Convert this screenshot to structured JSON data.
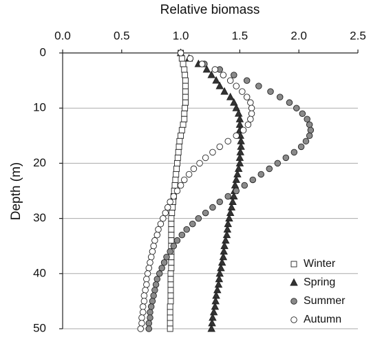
{
  "chart_data": {
    "type": "scatter",
    "xlabel": "Relative biomass",
    "ylabel": "Depth (m)",
    "xlim": [
      0,
      2.5
    ],
    "xticks": [
      {
        "value": 0,
        "label": "0.0"
      },
      0.5,
      {
        "value": 1,
        "label": "1.0"
      },
      1.5,
      {
        "value": 2,
        "label": "2.0"
      },
      2.5
    ],
    "ylim": [
      0,
      50
    ],
    "yticks": [
      0,
      10,
      20,
      30,
      40,
      50
    ],
    "y_inverted": true,
    "grid": true,
    "legend": "bottom-right",
    "y": [
      0,
      1,
      2,
      3,
      4,
      5,
      6,
      7,
      8,
      9,
      10,
      11,
      12,
      13,
      14,
      15,
      16,
      17,
      18,
      19,
      20,
      21,
      22,
      23,
      24,
      25,
      26,
      27,
      28,
      29,
      30,
      31,
      32,
      33,
      34,
      35,
      36,
      37,
      38,
      39,
      40,
      41,
      42,
      43,
      44,
      45,
      46,
      47,
      48,
      49,
      50
    ],
    "series": [
      {
        "name": "Winter",
        "marker": "square",
        "color": "#ffffff",
        "x": [
          1.0,
          1.01,
          1.02,
          1.03,
          1.035,
          1.04,
          1.04,
          1.04,
          1.04,
          1.04,
          1.035,
          1.03,
          1.03,
          1.02,
          1.01,
          1.0,
          0.99,
          0.985,
          0.98,
          0.975,
          0.97,
          0.965,
          0.96,
          0.955,
          0.95,
          0.945,
          0.94,
          0.935,
          0.93,
          0.925,
          0.92,
          0.92,
          0.92,
          0.92,
          0.92,
          0.92,
          0.92,
          0.92,
          0.92,
          0.92,
          0.915,
          0.915,
          0.915,
          0.915,
          0.915,
          0.915,
          0.91,
          0.91,
          0.91,
          0.91,
          0.91
        ]
      },
      {
        "name": "Spring",
        "marker": "triangle",
        "color": "#333333",
        "x": [
          1.0,
          1.07,
          1.15,
          1.22,
          1.26,
          1.3,
          1.33,
          1.37,
          1.42,
          1.45,
          1.47,
          1.49,
          1.5,
          1.5,
          1.5,
          1.505,
          1.51,
          1.51,
          1.505,
          1.5,
          1.5,
          1.49,
          1.48,
          1.47,
          1.46,
          1.455,
          1.45,
          1.44,
          1.43,
          1.42,
          1.41,
          1.4,
          1.395,
          1.39,
          1.38,
          1.37,
          1.365,
          1.36,
          1.35,
          1.34,
          1.33,
          1.325,
          1.32,
          1.31,
          1.3,
          1.295,
          1.29,
          1.28,
          1.27,
          1.265,
          1.26
        ]
      },
      {
        "name": "Summer",
        "marker": "circle",
        "color": "#8a8a8a",
        "x": [
          1.0,
          1.08,
          1.2,
          1.33,
          1.45,
          1.56,
          1.66,
          1.76,
          1.84,
          1.92,
          1.98,
          2.03,
          2.07,
          2.09,
          2.1,
          2.09,
          2.06,
          2.02,
          1.96,
          1.89,
          1.82,
          1.75,
          1.68,
          1.61,
          1.54,
          1.47,
          1.4,
          1.33,
          1.27,
          1.21,
          1.15,
          1.1,
          1.05,
          1.01,
          0.97,
          0.94,
          0.91,
          0.88,
          0.86,
          0.84,
          0.82,
          0.8,
          0.79,
          0.78,
          0.77,
          0.76,
          0.75,
          0.74,
          0.74,
          0.73,
          0.73
        ]
      },
      {
        "name": "Autumn",
        "marker": "circle",
        "color": "#ffffff",
        "x": [
          1.0,
          1.08,
          1.18,
          1.29,
          1.36,
          1.42,
          1.47,
          1.52,
          1.56,
          1.59,
          1.6,
          1.6,
          1.59,
          1.57,
          1.53,
          1.47,
          1.4,
          1.33,
          1.27,
          1.21,
          1.16,
          1.11,
          1.07,
          1.03,
          1.0,
          0.97,
          0.94,
          0.91,
          0.89,
          0.87,
          0.85,
          0.83,
          0.81,
          0.8,
          0.78,
          0.77,
          0.76,
          0.75,
          0.74,
          0.73,
          0.72,
          0.71,
          0.71,
          0.7,
          0.69,
          0.69,
          0.68,
          0.68,
          0.67,
          0.67,
          0.66
        ]
      }
    ]
  }
}
